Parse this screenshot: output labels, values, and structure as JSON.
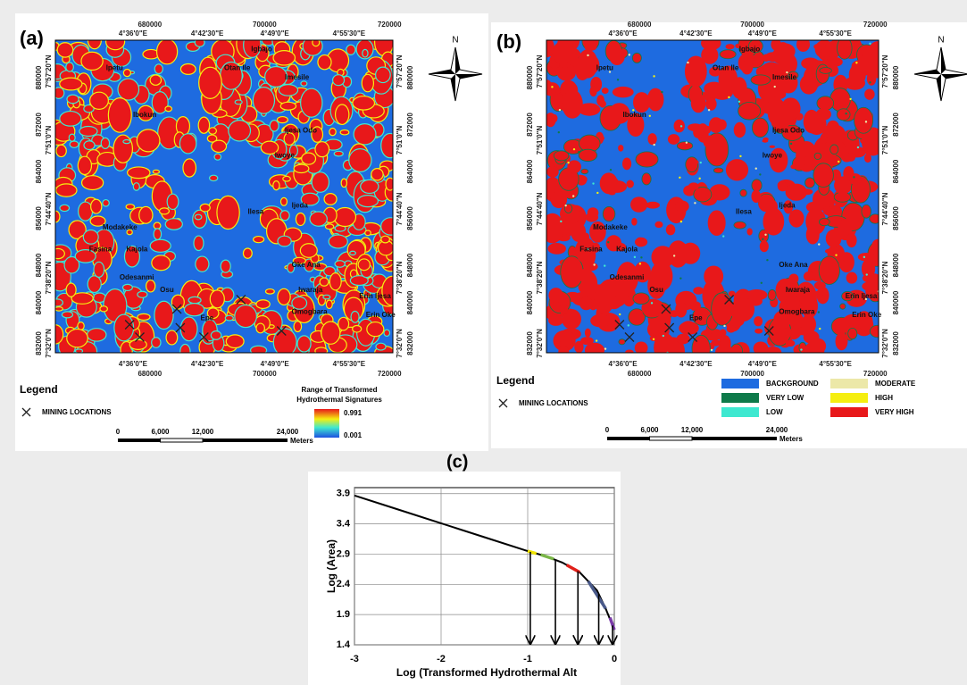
{
  "panel_labels": [
    "(a)",
    "(b)",
    "(c)"
  ],
  "north_label": "N",
  "map_grid": {
    "eastings": [
      "680000",
      "700000",
      "720000"
    ],
    "longitudes": [
      "4°36'0\"E",
      "4°42'30\"E",
      "4°49'0\"E",
      "4°55'30\"E"
    ],
    "northings": [
      "880000",
      "872000",
      "864000",
      "856000",
      "848000",
      "840000",
      "832000"
    ],
    "latitudes": [
      "7°57'20\"N",
      "7°51'0\"N",
      "7°44'40\"N",
      "7°38'20\"N",
      "7°32'0\"N"
    ]
  },
  "places": [
    "Igbajo",
    "Ipetu",
    "Otan Ile",
    "Imesile",
    "Ibokun",
    "Ijesa Odo",
    "Iwoye",
    "Ilesa",
    "Ijeda",
    "Modakeke",
    "Fasina",
    "Kajola",
    "Odesanmi",
    "Osu",
    "Epe",
    "Oke Ana",
    "Iwaraja",
    "Erin Ijesa",
    "Erin Oke",
    "Omogbara"
  ],
  "legend_title": "Legend",
  "mining_label": "MINING LOCATIONS",
  "scale_bar": [
    "0",
    "6,000",
    "12,000",
    "24,000"
  ],
  "scale_unit": "Meters",
  "map_a": {
    "colorbar_title": "Range of Transformed",
    "colorbar_title_2": "Hydrothermal Signatures",
    "colorbar_max": 0.991,
    "colorbar_min": 0.001
  },
  "map_b": {
    "classes": [
      {
        "name": "BACKGROUND",
        "color": "#1e6be0"
      },
      {
        "name": "VERY LOW",
        "color": "#0e7a4a"
      },
      {
        "name": "LOW",
        "color": "#3ee8d0"
      },
      {
        "name": "MODERATE",
        "color": "#ece8a8"
      },
      {
        "name": "HIGH",
        "color": "#f5ee10"
      },
      {
        "name": "VERY HIGH",
        "color": "#e8181a"
      }
    ]
  },
  "chart_data": {
    "type": "line",
    "xlabel": "Log (Transformed Hydrothermal Alt",
    "ylabel": "Log (Area)",
    "xlim": [
      -3,
      0
    ],
    "ylim": [
      1.4,
      4.0
    ],
    "xticks": [
      -3,
      -2,
      -1,
      0
    ],
    "yticks": [
      1.4,
      1.9,
      2.4,
      2.9,
      3.4,
      3.9
    ],
    "grid": true,
    "series": [
      {
        "color": "#000000",
        "x": [
          -3,
          -2.5,
          -2,
          -1.5,
          -1,
          -0.8,
          -0.6,
          -0.4,
          -0.2,
          -0.1,
          0
        ],
        "values": [
          3.87,
          3.64,
          3.41,
          3.18,
          2.95,
          2.87,
          2.76,
          2.6,
          2.3,
          2.0,
          1.65
        ]
      },
      {
        "color": "#f2e600",
        "x": [
          -1,
          -0.9
        ],
        "values": [
          2.95,
          2.91
        ]
      },
      {
        "color": "#7ab648",
        "x": [
          -0.85,
          -0.7
        ],
        "values": [
          2.89,
          2.82
        ]
      },
      {
        "color": "#e0201a",
        "x": [
          -0.55,
          -0.4
        ],
        "values": [
          2.72,
          2.6
        ]
      },
      {
        "color": "#4a5a8a",
        "x": [
          -0.3,
          -0.1
        ],
        "values": [
          2.45,
          2.0
        ]
      },
      {
        "color": "#7a3aa8",
        "x": [
          -0.05,
          0
        ],
        "values": [
          1.85,
          1.65
        ]
      }
    ],
    "thresholds": [
      -0.97,
      -0.68,
      -0.42,
      -0.18,
      -0.02
    ]
  }
}
